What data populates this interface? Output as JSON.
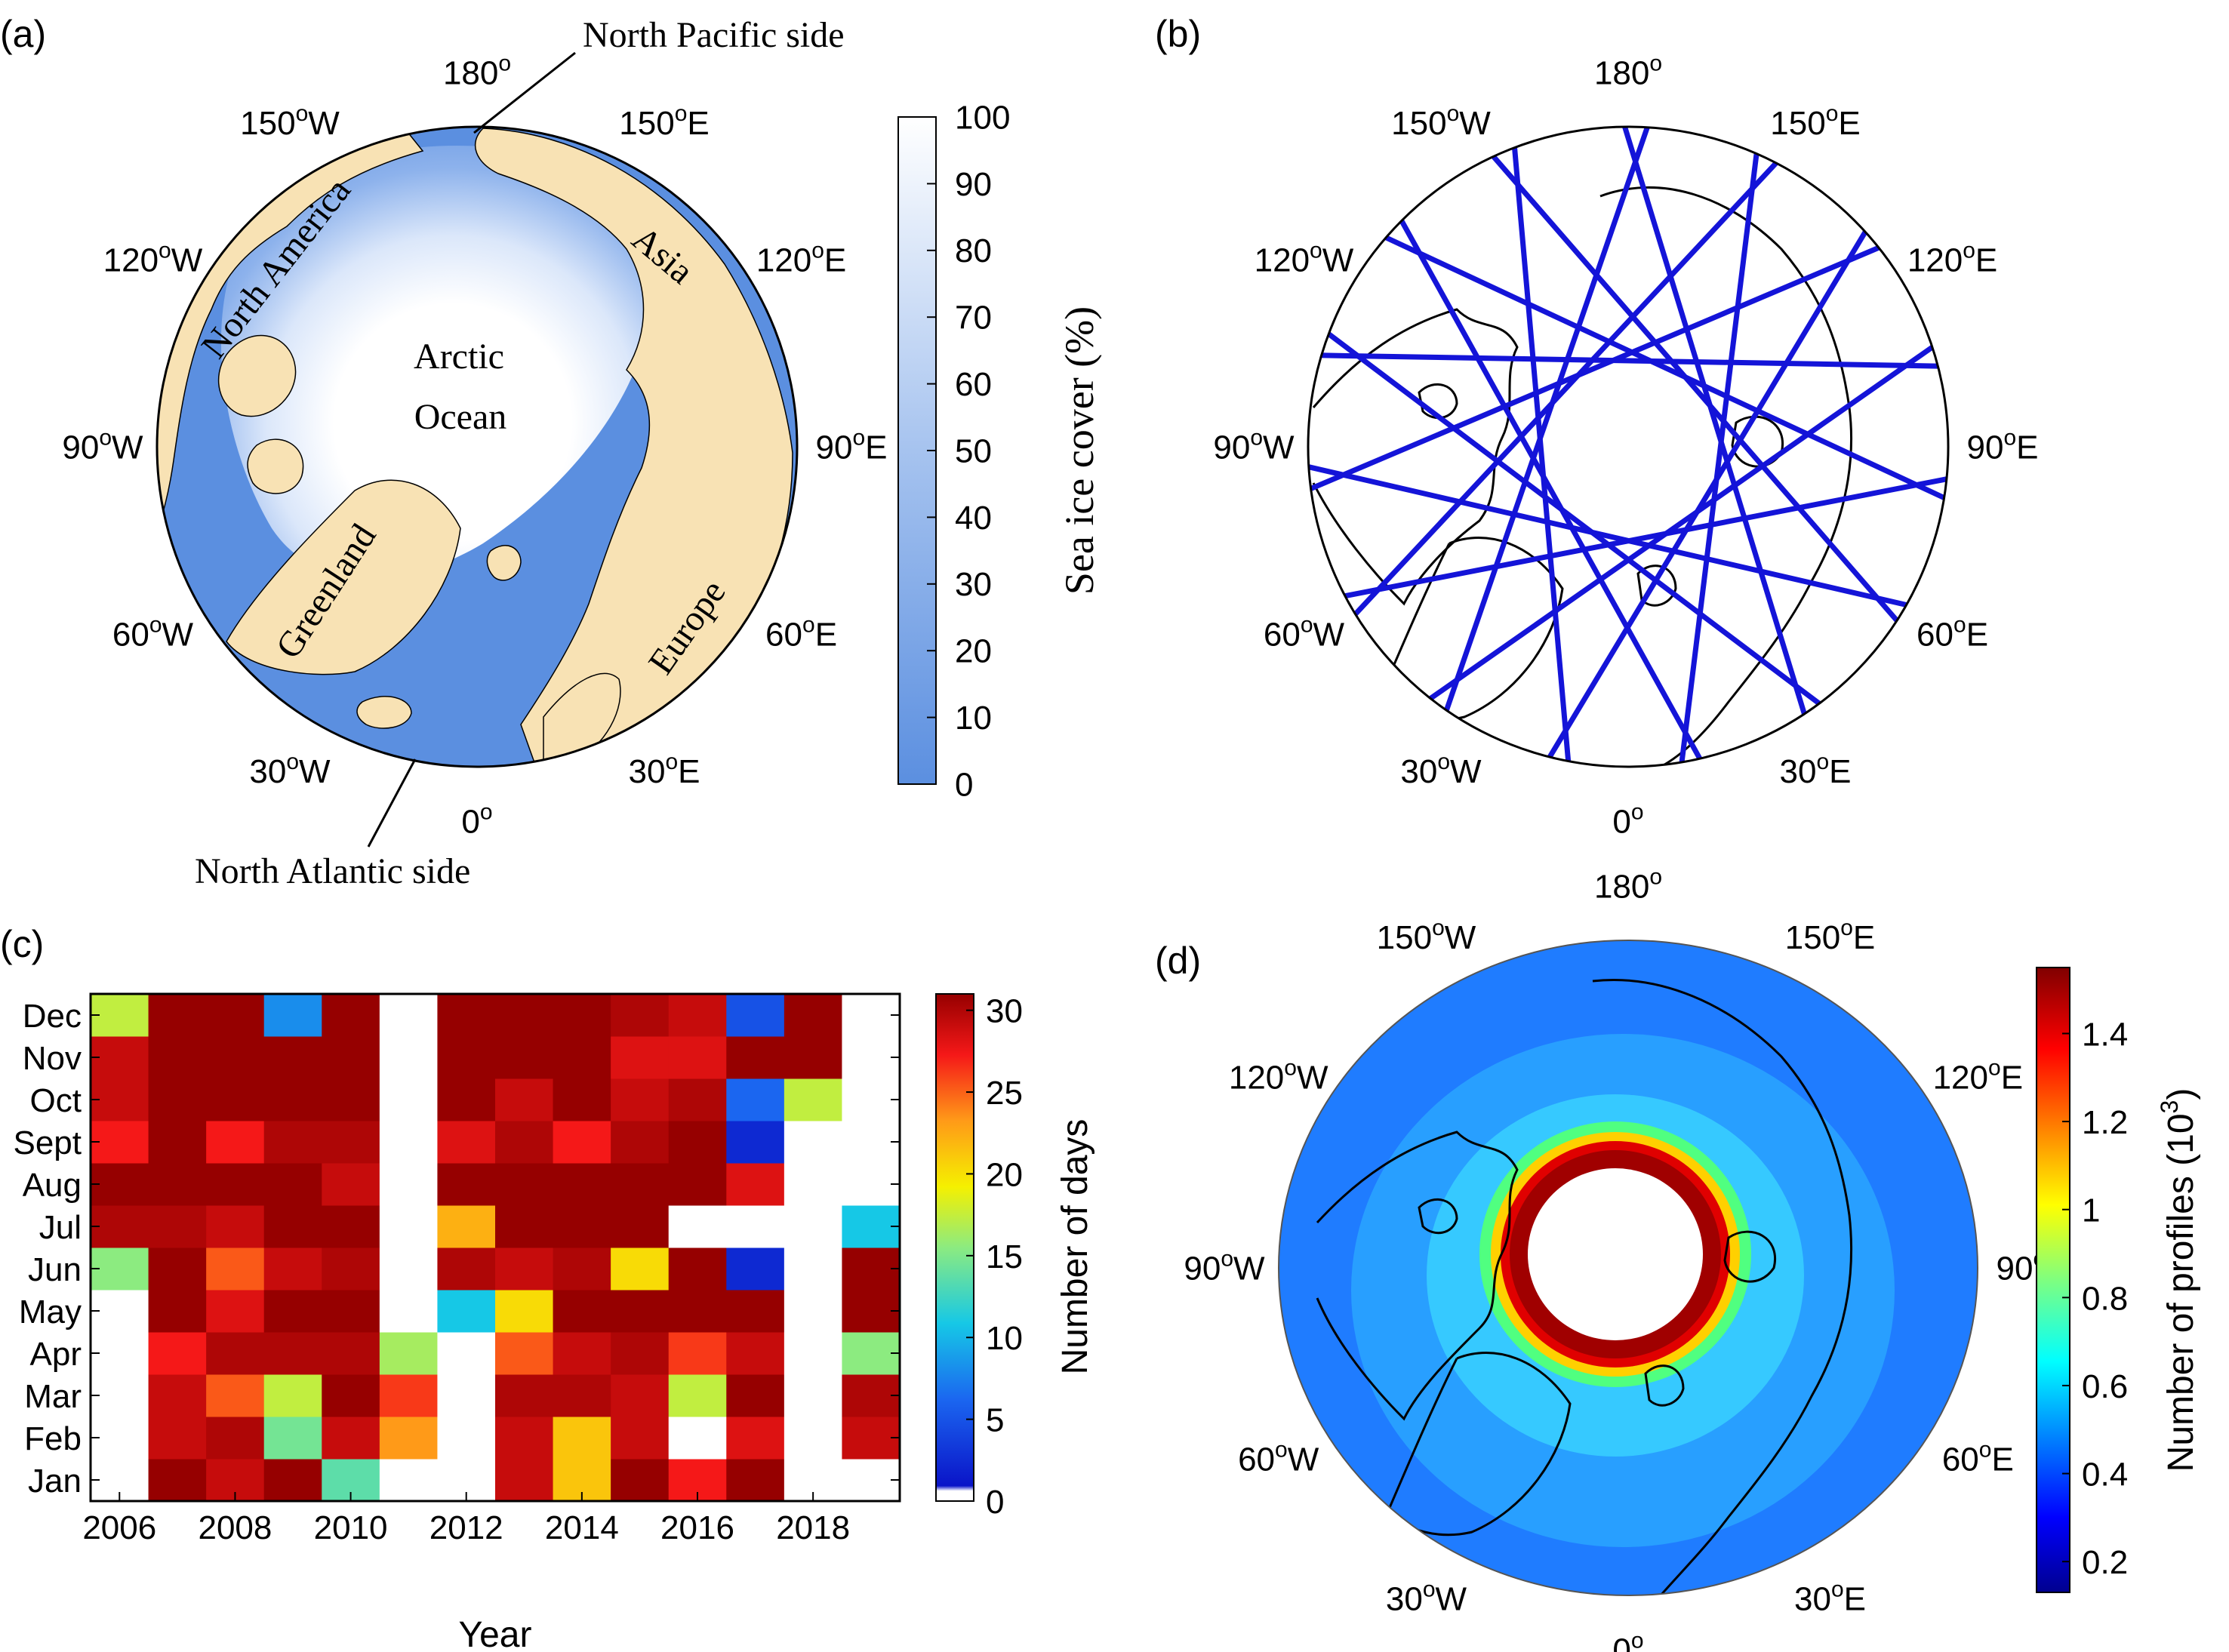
{
  "panels": {
    "a": {
      "label": "(a)",
      "lon_labels": [
        "180",
        "150",
        "W",
        "150",
        "E",
        "120",
        "W",
        "120",
        "E",
        "90",
        "W",
        "90",
        "E",
        "60",
        "W",
        "60",
        "E",
        "30",
        "W",
        "30",
        "E",
        "0"
      ],
      "lon_label_list": [
        {
          "deg": "180",
          "hemi": ""
        },
        {
          "deg": "150",
          "hemi": "W"
        },
        {
          "deg": "150",
          "hemi": "E"
        },
        {
          "deg": "120",
          "hemi": "W"
        },
        {
          "deg": "120",
          "hemi": "E"
        },
        {
          "deg": "90",
          "hemi": "W"
        },
        {
          "deg": "90",
          "hemi": "E"
        },
        {
          "deg": "60",
          "hemi": "W"
        },
        {
          "deg": "60",
          "hemi": "E"
        },
        {
          "deg": "30",
          "hemi": "W"
        },
        {
          "deg": "30",
          "hemi": "E"
        },
        {
          "deg": "0",
          "hemi": ""
        }
      ],
      "degree_symbol": "o",
      "annotations": {
        "north_pacific": "North Pacific side",
        "north_atlantic": "North Atlantic side",
        "arctic_1": "Arctic",
        "arctic_2": "Ocean",
        "north_america": "North America",
        "asia": "Asia",
        "greenland": "Greenland",
        "europe": "Europe"
      },
      "colorbar": {
        "label": "Sea ice cover (%)",
        "ticks": [
          "100",
          "90",
          "80",
          "70",
          "60",
          "50",
          "40",
          "30",
          "20",
          "10",
          "0"
        ],
        "color_low": "#5b8fe0",
        "color_high": "#ffffff"
      },
      "colors": {
        "land": "#f8e2b4",
        "ocean": "#5b8fe0",
        "ice": "#ffffff"
      }
    },
    "b": {
      "label": "(b)",
      "track_color": "#1414d8"
    },
    "c": {
      "label": "(c)",
      "xlabel": "Year",
      "colorbar_label": "Number of days",
      "colorbar_ticks": [
        "30",
        "25",
        "20",
        "15",
        "10",
        "5",
        "0"
      ]
    },
    "d": {
      "label": "(d)",
      "colorbar_label_main": "Number of profiles (10",
      "colorbar_label_exp": "3",
      "colorbar_label_end": ")",
      "colorbar_ticks": [
        "1.4",
        "1.2",
        "1",
        "0.8",
        "0.6",
        "0.4",
        "0.2"
      ]
    }
  },
  "chart_data": [
    {
      "panel": "c",
      "type": "heatmap",
      "title": "",
      "xlabel": "Year",
      "ylabel": "",
      "x": [
        2006,
        2007,
        2008,
        2009,
        2010,
        2011,
        2012,
        2013,
        2014,
        2015,
        2016,
        2017,
        2018,
        2019
      ],
      "x_ticks": [
        "2006",
        "2008",
        "2010",
        "2012",
        "2014",
        "2016",
        "2018"
      ],
      "y_categories": [
        "Jan",
        "Feb",
        "Mar",
        "Apr",
        "May",
        "Jun",
        "Jul",
        "Aug",
        "Sept",
        "Oct",
        "Nov",
        "Dec"
      ],
      "colorbar_label": "Number of days",
      "clim": [
        0,
        31
      ],
      "values_by_month": [
        [
          0,
          31,
          29,
          31,
          13,
          0,
          0,
          29,
          21,
          31,
          27,
          31,
          0,
          0
        ],
        [
          0,
          29,
          30,
          14,
          29,
          23,
          0,
          29,
          21,
          29,
          0,
          28,
          0,
          29
        ],
        [
          0,
          29,
          25,
          17,
          31,
          26,
          0,
          30,
          30,
          29,
          17,
          31,
          0,
          30
        ],
        [
          0,
          27,
          30,
          30,
          30,
          16,
          0,
          25,
          29,
          30,
          26,
          29,
          0,
          15
        ],
        [
          0,
          31,
          28,
          31,
          31,
          0,
          10,
          20,
          31,
          31,
          31,
          31,
          0,
          31
        ],
        [
          15,
          31,
          25,
          29,
          30,
          0,
          30,
          29,
          30,
          20,
          31,
          2,
          0,
          31
        ],
        [
          30,
          30,
          29,
          31,
          31,
          0,
          22,
          31,
          31,
          31,
          0,
          0,
          0,
          10
        ],
        [
          31,
          31,
          31,
          31,
          29,
          0,
          31,
          31,
          31,
          31,
          31,
          28,
          0,
          0
        ],
        [
          27,
          31,
          27,
          30,
          30,
          0,
          28,
          30,
          27,
          30,
          31,
          2,
          0,
          0
        ],
        [
          29,
          31,
          31,
          31,
          31,
          0,
          31,
          29,
          31,
          29,
          30,
          5,
          17,
          0
        ],
        [
          29,
          31,
          31,
          31,
          31,
          0,
          31,
          31,
          31,
          28,
          28,
          31,
          31,
          0
        ],
        [
          17,
          31,
          31,
          7,
          31,
          0,
          31,
          31,
          31,
          30,
          29,
          4,
          31,
          0
        ]
      ]
    },
    {
      "panel": "a",
      "type": "heatmap",
      "title": "",
      "colorbar_label": "Sea ice cover (%)",
      "clim": [
        0,
        100
      ],
      "colorbar_ticks": [
        0,
        10,
        20,
        30,
        40,
        50,
        60,
        70,
        80,
        90,
        100
      ]
    },
    {
      "panel": "d",
      "type": "heatmap",
      "title": "",
      "colorbar_label": "Number of profiles (10^3)",
      "clim": [
        0.13,
        1.55
      ],
      "colorbar_ticks": [
        0.2,
        0.4,
        0.6,
        0.8,
        1,
        1.2,
        1.4
      ]
    }
  ]
}
